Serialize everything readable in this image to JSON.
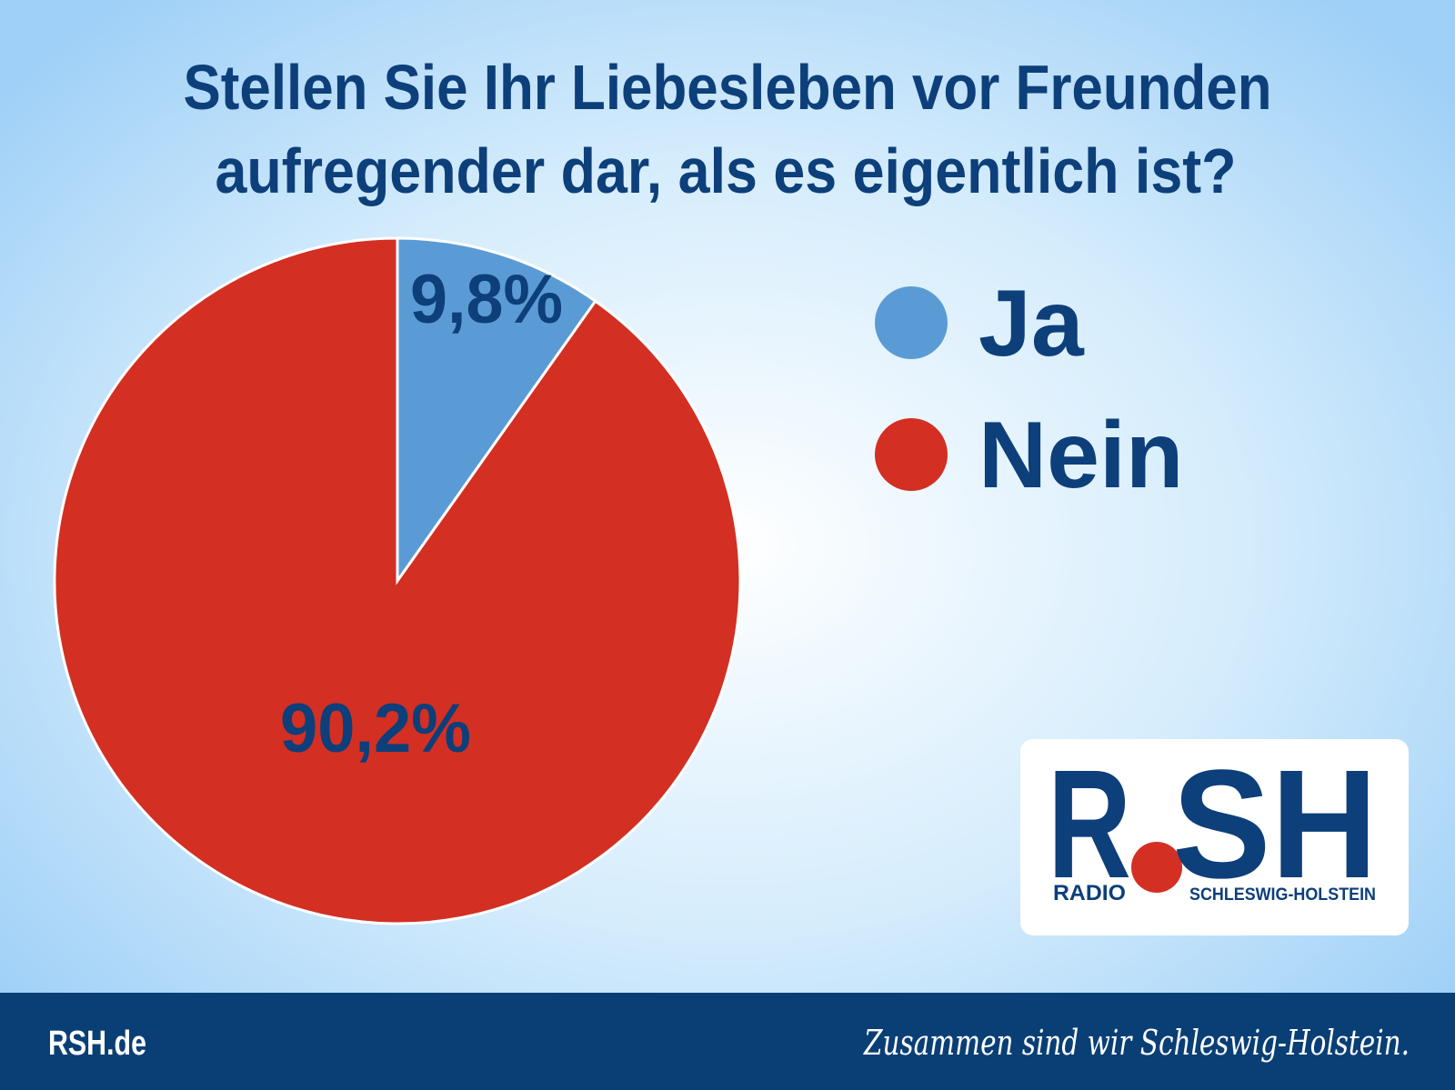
{
  "chart_data": {
    "type": "pie",
    "title_lines": [
      "Stellen Sie Ihr Liebesleben vor Freunden",
      "aufregender dar, als es eigentlich ist?"
    ],
    "categories": [
      "Ja",
      "Nein"
    ],
    "values": [
      9.8,
      90.2
    ],
    "value_labels": [
      "9,8%",
      "90,2%"
    ],
    "colors": [
      "#5b9bd5",
      "#d32f22"
    ],
    "legend": "right"
  },
  "logo": {
    "letters": [
      "R",
      "SH"
    ],
    "left_text": "RADIO",
    "right_text": "SCHLESWIG-HOLSTEIN"
  },
  "footer": {
    "site": "RSH.de",
    "slogan": "Zusammen sind wir Schleswig-Holstein."
  }
}
